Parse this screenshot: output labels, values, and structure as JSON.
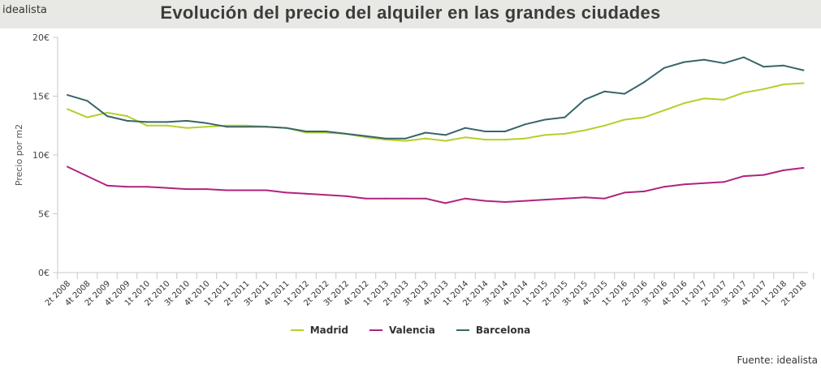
{
  "header": {
    "brand": "idealista",
    "title": "Evolución del precio del alquiler en las grandes ciudades"
  },
  "source": "Fuente: idealista",
  "chart_data": {
    "type": "line",
    "title": "Evolución del precio del alquiler en las grandes ciudades",
    "xlabel": "",
    "ylabel": "Precio por m2",
    "ylim": [
      0,
      20
    ],
    "yticks": [
      0,
      5,
      10,
      15,
      20
    ],
    "ytick_labels": [
      "0€",
      "5€",
      "10€",
      "15€",
      "20€"
    ],
    "grid": false,
    "legend_position": "bottom",
    "categories": [
      "2t 2008",
      "4t 2008",
      "2t 2009",
      "4t 2009",
      "1t 2010",
      "2t 2010",
      "3t 2010",
      "4t 2010",
      "1t 2011",
      "2t 2011",
      "3t 2011",
      "4t 2011",
      "1t 2012",
      "2t 2012",
      "3t 2012",
      "4t 2012",
      "1t 2013",
      "2t 2013",
      "3t 2013",
      "4t 2013",
      "1t 2014",
      "2t 2014",
      "3t 2014",
      "4t 2014",
      "1t 2015",
      "2t 2015",
      "3t 2015",
      "4t 2015",
      "1t 2016",
      "2t 2016",
      "3t 2016",
      "4t 2016",
      "1t 2017",
      "2t 2017",
      "3t 2017",
      "4t 2017",
      "1t 2018",
      "2t 2018"
    ],
    "series": [
      {
        "name": "Madrid",
        "color": "#b5cf2a",
        "values": [
          13.9,
          13.2,
          13.6,
          13.3,
          12.5,
          12.5,
          12.3,
          12.4,
          12.5,
          12.5,
          12.4,
          12.3,
          11.9,
          11.9,
          11.8,
          11.5,
          11.3,
          11.2,
          11.4,
          11.2,
          11.5,
          11.3,
          11.3,
          11.4,
          11.7,
          11.8,
          12.1,
          12.5,
          13.0,
          13.2,
          13.8,
          14.4,
          14.8,
          14.7,
          15.3,
          15.6,
          16.0,
          16.1
        ]
      },
      {
        "name": "Valencia",
        "color": "#b0237e",
        "values": [
          9.0,
          8.2,
          7.4,
          7.3,
          7.3,
          7.2,
          7.1,
          7.1,
          7.0,
          7.0,
          7.0,
          6.8,
          6.7,
          6.6,
          6.5,
          6.3,
          6.3,
          6.3,
          6.3,
          5.9,
          6.3,
          6.1,
          6.0,
          6.1,
          6.2,
          6.3,
          6.4,
          6.3,
          6.8,
          6.9,
          7.3,
          7.5,
          7.6,
          7.7,
          8.2,
          8.3,
          8.7,
          8.9
        ]
      },
      {
        "name": "Barcelona",
        "color": "#36666a",
        "values": [
          15.1,
          14.6,
          13.3,
          12.9,
          12.8,
          12.8,
          12.9,
          12.7,
          12.4,
          12.4,
          12.4,
          12.3,
          12.0,
          12.0,
          11.8,
          11.6,
          11.4,
          11.4,
          11.9,
          11.7,
          12.3,
          12.0,
          12.0,
          12.6,
          13.0,
          13.2,
          14.7,
          15.4,
          15.2,
          16.2,
          17.4,
          17.9,
          18.1,
          17.8,
          18.3,
          17.5,
          17.6,
          17.2
        ]
      }
    ]
  }
}
